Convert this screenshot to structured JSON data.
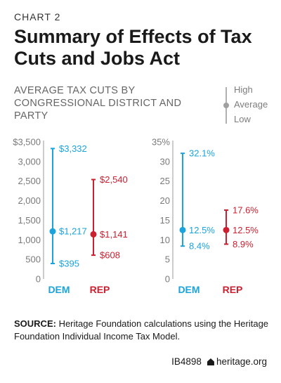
{
  "header": {
    "kicker": "CHART 2",
    "title": "Summary of Effects of Tax Cuts and Jobs Act",
    "subtitle": "AVERAGE TAX CUTS BY CONGRESSIONAL DISTRICT AND PARTY"
  },
  "legend": {
    "high": "High",
    "average": "Average",
    "low": "Low"
  },
  "colors": {
    "dem": "#1aa3dd",
    "rep": "#cc1f2f",
    "axis": "#999999",
    "legend": "#b0b0b0"
  },
  "chart_data": [
    {
      "type": "range",
      "unit": "dollars",
      "ylim": [
        0,
        3500
      ],
      "yticks": [
        0,
        500,
        1000,
        1500,
        2000,
        2500,
        3000,
        3500
      ],
      "ytick_labels": [
        "0",
        "500",
        "1,000",
        "1,500",
        "2,000",
        "2,500",
        "3,000",
        "$3,500"
      ],
      "categories": [
        "DEM",
        "REP"
      ],
      "series": [
        {
          "name": "DEM",
          "low": 395,
          "average": 1217,
          "high": 3332,
          "labels": {
            "low": "$395",
            "average": "$1,217",
            "high": "$3,332"
          }
        },
        {
          "name": "REP",
          "low": 608,
          "average": 1141,
          "high": 2540,
          "labels": {
            "low": "$608",
            "average": "$1,141",
            "high": "$2,540"
          }
        }
      ]
    },
    {
      "type": "range",
      "unit": "percent",
      "ylim": [
        0,
        35
      ],
      "yticks": [
        0,
        5,
        10,
        15,
        20,
        25,
        30,
        35
      ],
      "ytick_labels": [
        "0",
        "5",
        "10",
        "15",
        "20",
        "25",
        "30",
        "35%"
      ],
      "categories": [
        "DEM",
        "REP"
      ],
      "series": [
        {
          "name": "DEM",
          "low": 8.4,
          "average": 12.5,
          "high": 32.1,
          "labels": {
            "low": "8.4%",
            "average": "12.5%",
            "high": "32.1%"
          }
        },
        {
          "name": "REP",
          "low": 8.9,
          "average": 12.5,
          "high": 17.6,
          "labels": {
            "low": "8.9%",
            "average": "12.5%",
            "high": "17.6%"
          }
        }
      ]
    }
  ],
  "source": {
    "label": "SOURCE:",
    "text": " Heritage Foundation calculations using the Heritage Foundation Individual Income Tax Model."
  },
  "footer": {
    "id": "IB4898",
    "site": "heritage.org"
  }
}
